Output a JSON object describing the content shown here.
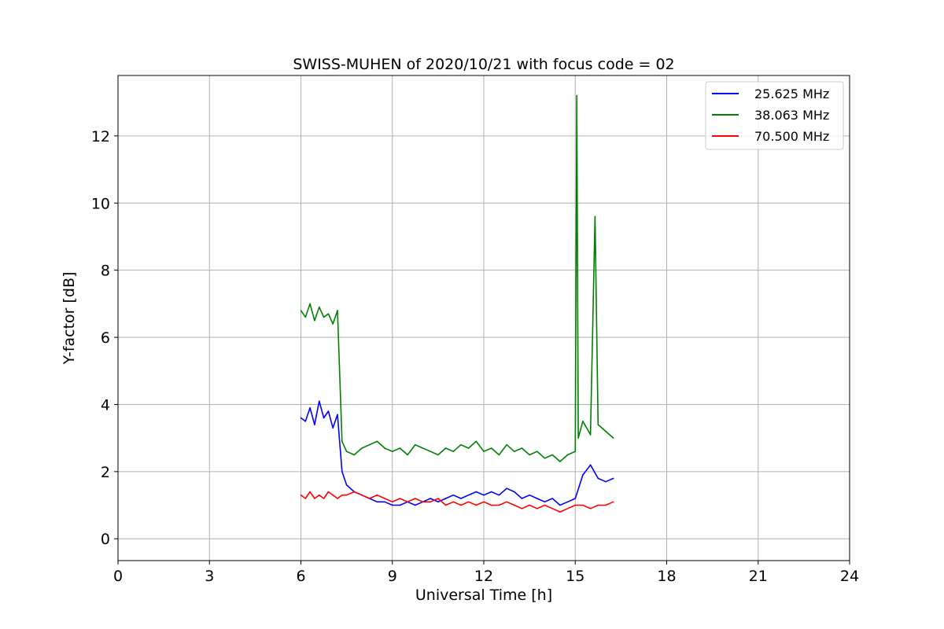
{
  "chart_data": {
    "type": "line",
    "title": "SWISS-MUHEN of 2020/10/21 with focus code = 02",
    "xlabel": "Universal Time [h]",
    "ylabel": "Y-factor [dB]",
    "xlim": [
      0,
      24
    ],
    "ylim": [
      -0.65,
      13.8
    ],
    "xticks": [
      0,
      3,
      6,
      9,
      12,
      15,
      18,
      21,
      24
    ],
    "yticks": [
      0,
      2,
      4,
      6,
      8,
      10,
      12
    ],
    "grid": true,
    "legend_position": "top-right",
    "series": [
      {
        "name": "25.625 MHz",
        "color": "#0000ff",
        "x": [
          6.0,
          6.15,
          6.3,
          6.45,
          6.6,
          6.75,
          6.9,
          7.05,
          7.2,
          7.35,
          7.5,
          7.75,
          8.0,
          8.25,
          8.5,
          8.75,
          9.0,
          9.25,
          9.5,
          9.75,
          10.0,
          10.25,
          10.5,
          10.75,
          11.0,
          11.25,
          11.5,
          11.75,
          12.0,
          12.25,
          12.5,
          12.75,
          13.0,
          13.25,
          13.5,
          13.75,
          14.0,
          14.25,
          14.5,
          14.75,
          15.0,
          15.25,
          15.5,
          15.75,
          16.0,
          16.25
        ],
        "values": [
          3.6,
          3.5,
          3.9,
          3.4,
          4.1,
          3.6,
          3.8,
          3.3,
          3.7,
          2.0,
          1.6,
          1.4,
          1.3,
          1.2,
          1.1,
          1.1,
          1.0,
          1.0,
          1.1,
          1.0,
          1.1,
          1.2,
          1.1,
          1.2,
          1.3,
          1.2,
          1.3,
          1.4,
          1.3,
          1.4,
          1.3,
          1.5,
          1.4,
          1.2,
          1.3,
          1.2,
          1.1,
          1.2,
          1.0,
          1.1,
          1.2,
          1.9,
          2.2,
          1.8,
          1.7,
          1.8
        ]
      },
      {
        "name": "38.063 MHz",
        "color": "#008000",
        "x": [
          6.0,
          6.15,
          6.3,
          6.45,
          6.6,
          6.75,
          6.9,
          7.05,
          7.2,
          7.35,
          7.5,
          7.75,
          8.0,
          8.25,
          8.5,
          8.75,
          9.0,
          9.25,
          9.5,
          9.75,
          10.0,
          10.25,
          10.5,
          10.75,
          11.0,
          11.25,
          11.5,
          11.75,
          12.0,
          12.25,
          12.5,
          12.75,
          13.0,
          13.25,
          13.5,
          13.75,
          14.0,
          14.25,
          14.5,
          14.75,
          15.0,
          15.05,
          15.1,
          15.25,
          15.5,
          15.65,
          15.75,
          16.0,
          16.25
        ],
        "values": [
          6.8,
          6.6,
          7.0,
          6.5,
          6.9,
          6.6,
          6.7,
          6.4,
          6.8,
          2.9,
          2.6,
          2.5,
          2.7,
          2.8,
          2.9,
          2.7,
          2.6,
          2.7,
          2.5,
          2.8,
          2.7,
          2.6,
          2.5,
          2.7,
          2.6,
          2.8,
          2.7,
          2.9,
          2.6,
          2.7,
          2.5,
          2.8,
          2.6,
          2.7,
          2.5,
          2.6,
          2.4,
          2.5,
          2.3,
          2.5,
          2.6,
          13.2,
          3.0,
          3.5,
          3.1,
          9.6,
          3.4,
          3.2,
          3.0
        ]
      },
      {
        "name": "70.500 MHz",
        "color": "#ff0000",
        "x": [
          6.0,
          6.15,
          6.3,
          6.45,
          6.6,
          6.75,
          6.9,
          7.05,
          7.2,
          7.35,
          7.5,
          7.75,
          8.0,
          8.25,
          8.5,
          8.75,
          9.0,
          9.25,
          9.5,
          9.75,
          10.0,
          10.25,
          10.5,
          10.75,
          11.0,
          11.25,
          11.5,
          11.75,
          12.0,
          12.25,
          12.5,
          12.75,
          13.0,
          13.25,
          13.5,
          13.75,
          14.0,
          14.25,
          14.5,
          14.75,
          15.0,
          15.25,
          15.5,
          15.75,
          16.0,
          16.25
        ],
        "values": [
          1.3,
          1.2,
          1.4,
          1.2,
          1.3,
          1.2,
          1.4,
          1.3,
          1.2,
          1.3,
          1.3,
          1.4,
          1.3,
          1.2,
          1.3,
          1.2,
          1.1,
          1.2,
          1.1,
          1.2,
          1.1,
          1.1,
          1.2,
          1.0,
          1.1,
          1.0,
          1.1,
          1.0,
          1.1,
          1.0,
          1.0,
          1.1,
          1.0,
          0.9,
          1.0,
          0.9,
          1.0,
          0.9,
          0.8,
          0.9,
          1.0,
          1.0,
          0.9,
          1.0,
          1.0,
          1.1
        ]
      }
    ]
  }
}
